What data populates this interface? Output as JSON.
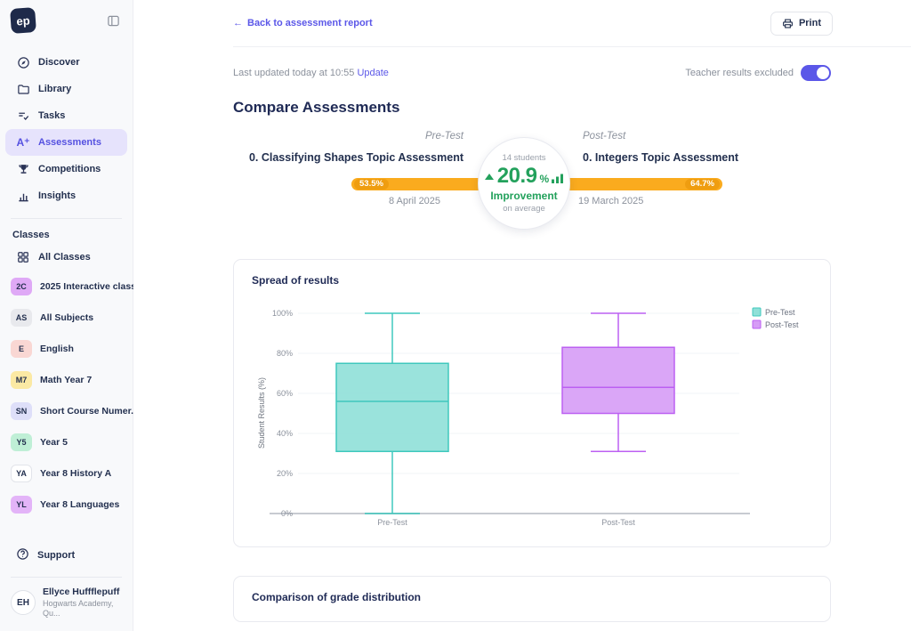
{
  "sidebar": {
    "logo_text": "ep",
    "nav": [
      {
        "label": "Discover",
        "icon": "compass-icon",
        "active": false
      },
      {
        "label": "Library",
        "icon": "folder-icon",
        "active": false
      },
      {
        "label": "Tasks",
        "icon": "tasks-icon",
        "active": false
      },
      {
        "label": "Assessments",
        "icon": "assessments-icon",
        "active": true
      },
      {
        "label": "Competitions",
        "icon": "trophy-icon",
        "active": false
      },
      {
        "label": "Insights",
        "icon": "bar-chart-icon",
        "active": false
      }
    ],
    "classes_header": "Classes",
    "all_classes_label": "All Classes",
    "classes": [
      {
        "badge": "2C",
        "badge_bg": "#DFA9F6",
        "label": "2025 Interactive class"
      },
      {
        "badge": "AS",
        "badge_bg": "#E8E9ED",
        "label": "All Subjects"
      },
      {
        "badge": "E",
        "badge_bg": "#F9D7D3",
        "label": "English"
      },
      {
        "badge": "M7",
        "badge_bg": "#FBE9A4",
        "label": "Math Year 7"
      },
      {
        "badge": "SN",
        "badge_bg": "#DEDFF9",
        "label": "Short Course Numer..."
      },
      {
        "badge": "Y5",
        "badge_bg": "#BFEFD6",
        "label": "Year 5"
      },
      {
        "badge": "YA",
        "badge_bg": "#FFFFFF",
        "label": "Year 8 History A"
      },
      {
        "badge": "YL",
        "badge_bg": "#E3B4F8",
        "label": "Year 8 Languages"
      }
    ],
    "support_label": "Support",
    "user": {
      "initials": "EH",
      "name": "Ellyce Huffflepuff",
      "org": "Hogwarts Academy, Qu..."
    }
  },
  "topbar": {
    "back_label": "Back to assessment report",
    "print_label": "Print"
  },
  "statusbar": {
    "last_updated": "Last updated today at 10:55",
    "update_label": "Update",
    "toggle_label": "Teacher results excluded",
    "toggle_on": true
  },
  "page": {
    "title": "Compare Assessments"
  },
  "comparison": {
    "pre": {
      "tag": "Pre-Test",
      "title": "0. Classifying Shapes Topic Assessment",
      "score": "53.5%",
      "date": "8 April 2025"
    },
    "post": {
      "tag": "Post-Test",
      "title": "0. Integers Topic Assessment",
      "score": "64.7%",
      "date": "19 March 2025"
    },
    "center": {
      "students": "14 students",
      "value": "20.9",
      "percent_sign": "%",
      "label": "Improvement",
      "sub": "on average"
    },
    "bar_color": "#FAAB1E",
    "accent_green": "#23A15C"
  },
  "cards": {
    "spread_title": "Spread of results",
    "grades_title": "Comparison of grade distribution"
  },
  "chart_data": {
    "type": "boxplot",
    "title": "Spread of results",
    "ylabel": "Student Results (%)",
    "ylim": [
      0,
      100
    ],
    "yticks": [
      {
        "value": 0,
        "label": "0%"
      },
      {
        "value": 20,
        "label": "20%"
      },
      {
        "value": 40,
        "label": "40%"
      },
      {
        "value": 60,
        "label": "60%"
      },
      {
        "value": 80,
        "label": "80%"
      },
      {
        "value": 100,
        "label": "100%"
      }
    ],
    "categories": [
      "Pre-Test",
      "Post-Test"
    ],
    "series": [
      {
        "name": "Pre-Test",
        "fill": "#8FE0D8",
        "stroke": "#3FC8BD",
        "min": 0,
        "q1": 31,
        "median": 56,
        "q3": 75,
        "max": 100
      },
      {
        "name": "Post-Test",
        "fill": "#D69CF6",
        "stroke": "#BC60F2",
        "min": 31,
        "q1": 50,
        "median": 63,
        "q3": 83,
        "max": 100
      }
    ],
    "grid": true,
    "legend_position": "top-right"
  }
}
